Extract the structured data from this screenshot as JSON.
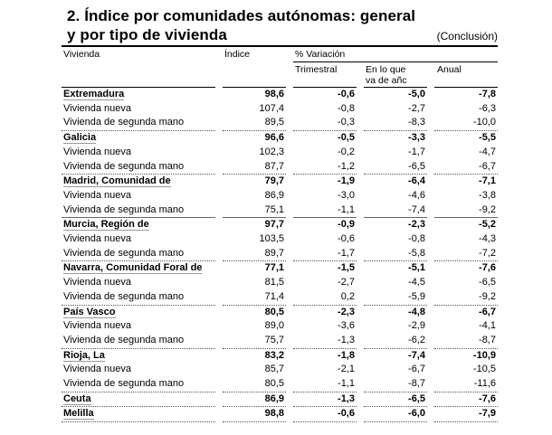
{
  "title_line1": "2. Índice por comunidades autónomas: general",
  "title_line2": "y por tipo de vivienda",
  "conclusion": "(Conclusión)",
  "headers": {
    "vivienda": "Vivienda",
    "indice": "Índice",
    "variacion": "% Variación",
    "trimestral": "Trimestral",
    "en_lo_que_1": "En lo que",
    "en_lo_que_2": "va de añc",
    "anual": "Anual"
  },
  "rows": [
    {
      "label": "Extremadura",
      "type": "region",
      "values": [
        "98,6",
        "-0,6",
        "-5,0",
        "-7,8"
      ]
    },
    {
      "label": "Vivienda nueva",
      "type": "sub",
      "values": [
        "107,4",
        "-0,8",
        "-2,7",
        "-6,3"
      ]
    },
    {
      "label": "Vivienda de segunda mano",
      "type": "sub-last",
      "values": [
        "89,5",
        "-0,3",
        "-8,3",
        "-10,0"
      ]
    },
    {
      "label": "Galicia",
      "type": "region",
      "values": [
        "96,6",
        "-0,5",
        "-3,3",
        "-5,5"
      ]
    },
    {
      "label": "Vivienda nueva",
      "type": "sub",
      "values": [
        "102,3",
        "-0,2",
        "-1,7",
        "-4,7"
      ]
    },
    {
      "label": "Vivienda de segunda mano",
      "type": "sub-last",
      "values": [
        "87,7",
        "-1,2",
        "-6,5",
        "-6,7"
      ]
    },
    {
      "label": "Madrid, Comunidad de",
      "type": "region",
      "values": [
        "79,7",
        "-1,9",
        "-6,4",
        "-7,1"
      ]
    },
    {
      "label": "Vivienda nueva",
      "type": "sub",
      "values": [
        "86,9",
        "-3,0",
        "-4,6",
        "-3,8"
      ]
    },
    {
      "label": "Vivienda de segunda mano",
      "type": "sub",
      "values": [
        "75,1",
        "-1,1",
        "-7,4",
        "-9,2"
      ]
    },
    {
      "label": "Murcia, Región de",
      "type": "region",
      "values": [
        "97,7",
        "-0,9",
        "-2,3",
        "-5,2"
      ]
    },
    {
      "label": "Vivienda nueva",
      "type": "sub",
      "values": [
        "103,5",
        "-0,6",
        "-0,8",
        "-4,3"
      ]
    },
    {
      "label": "Vivienda de segunda mano",
      "type": "sub-last",
      "values": [
        "89,7",
        "-1,7",
        "-5,8",
        "-7,2"
      ]
    },
    {
      "label": "Navarra, Comunidad Foral de",
      "type": "region",
      "values": [
        "77,1",
        "-1,5",
        "-5,1",
        "-7,6"
      ]
    },
    {
      "label": "Vivienda nueva",
      "type": "sub",
      "values": [
        "81,5",
        "-2,7",
        "-4,5",
        "-6,5"
      ]
    },
    {
      "label": "Vivienda de segunda mano",
      "type": "sub-last",
      "values": [
        "71,4",
        "0,2",
        "-5,9",
        "-9,2"
      ]
    },
    {
      "label": "País Vasco",
      "type": "region",
      "values": [
        "80,5",
        "-2,3",
        "-4,8",
        "-6,7"
      ]
    },
    {
      "label": "Vivienda nueva",
      "type": "sub",
      "values": [
        "89,0",
        "-3,6",
        "-2,9",
        "-4,1"
      ]
    },
    {
      "label": "Vivienda de segunda mano",
      "type": "sub-last",
      "values": [
        "75,7",
        "-1,3",
        "-6,2",
        "-8,7"
      ]
    },
    {
      "label": "Rioja, La",
      "type": "region",
      "values": [
        "83,2",
        "-1,8",
        "-7,4",
        "-10,9"
      ]
    },
    {
      "label": "Vivienda nueva",
      "type": "sub",
      "values": [
        "85,7",
        "-2,1",
        "-6,7",
        "-10,5"
      ]
    },
    {
      "label": "Vivienda de segunda mano",
      "type": "sub-last",
      "values": [
        "80,5",
        "-1,1",
        "-8,7",
        "-11,6"
      ]
    },
    {
      "label": "Ceuta",
      "type": "region-last",
      "values": [
        "86,9",
        "-1,3",
        "-6,5",
        "-7,6"
      ]
    },
    {
      "label": "Melilla",
      "type": "region-last",
      "values": [
        "98,8",
        "-0,6",
        "-6,0",
        "-7,9"
      ]
    }
  ]
}
